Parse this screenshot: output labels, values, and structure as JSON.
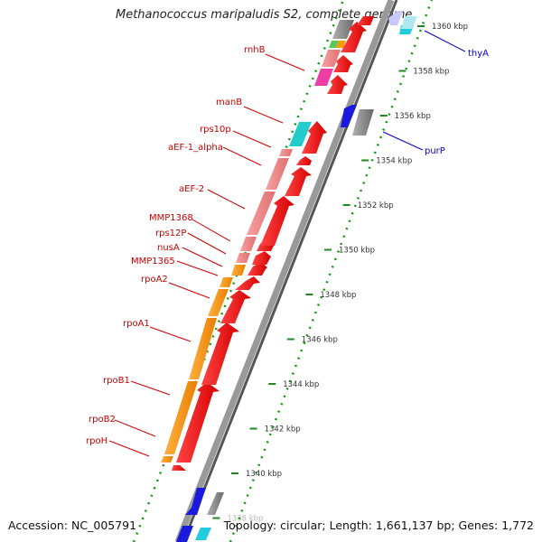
{
  "title": "Methanococcus maripaludis S2, complete genome",
  "footer": {
    "accession_label": "Accession:",
    "accession_value": "NC_005791",
    "summary_text": "Topology: circular; Length: 1,661,137 bp; Genes: 1,772"
  },
  "ticks": [
    {
      "kbp": 1338,
      "label": "1338 kbp"
    },
    {
      "kbp": 1340,
      "label": "1340 kbp"
    },
    {
      "kbp": 1342,
      "label": "1342 kbp"
    },
    {
      "kbp": 1344,
      "label": "1344 kbp"
    },
    {
      "kbp": 1346,
      "label": "1346 kbp"
    },
    {
      "kbp": 1348,
      "label": "1348 kbp"
    },
    {
      "kbp": 1350,
      "label": "1350 kbp"
    },
    {
      "kbp": 1352,
      "label": "1352 kbp"
    },
    {
      "kbp": 1354,
      "label": "1354 kbp"
    },
    {
      "kbp": 1356,
      "label": "1356 kbp"
    },
    {
      "kbp": 1358,
      "label": "1358 kbp"
    },
    {
      "kbp": 1360,
      "label": "1360 kbp"
    }
  ],
  "genes_left": [
    {
      "name": "rnhB",
      "strand": "+",
      "cog_color": "#ff88aa"
    },
    {
      "name": "manB",
      "strand": "+",
      "cog_color": "#22cccc"
    },
    {
      "name": "rps10p",
      "strand": "+",
      "cog_color": "#ee8888"
    },
    {
      "name": "aEF-1_alpha",
      "strand": "+",
      "cog_color": "#ee8888"
    },
    {
      "name": "aEF-2",
      "strand": "+",
      "cog_color": "#ee8888"
    },
    {
      "name": "MMP1368",
      "strand": "+",
      "cog_color": "#ee8888"
    },
    {
      "name": "rps12P",
      "strand": "+",
      "cog_color": "#ee8888"
    },
    {
      "name": "nusA",
      "strand": "+",
      "cog_color": "#ff9900"
    },
    {
      "name": "MMP1365",
      "strand": "+",
      "cog_color": "#ee8888"
    },
    {
      "name": "rpoA2",
      "strand": "+",
      "cog_color": "#ff9900"
    },
    {
      "name": "rpoA1",
      "strand": "+",
      "cog_color": "#ff9900"
    },
    {
      "name": "rpoB1",
      "strand": "+",
      "cog_color": "#ff9900"
    },
    {
      "name": "rpoB2",
      "strand": "+",
      "cog_color": "#ff9900"
    },
    {
      "name": "rpoH",
      "strand": "+",
      "cog_color": "#ff9900"
    }
  ],
  "genes_right": [
    {
      "name": "thyA",
      "strand": "-",
      "cog_color": "#22ccdd"
    },
    {
      "name": "purP",
      "strand": "-",
      "cog_color": "#aaaaaa"
    }
  ],
  "colors": {
    "forward_gene": "#ee1111",
    "reverse_gene": "#1111dd",
    "backbone": "#808080",
    "tick": "#228822",
    "label_left": "#cc0000",
    "label_right": "#0000cc"
  }
}
